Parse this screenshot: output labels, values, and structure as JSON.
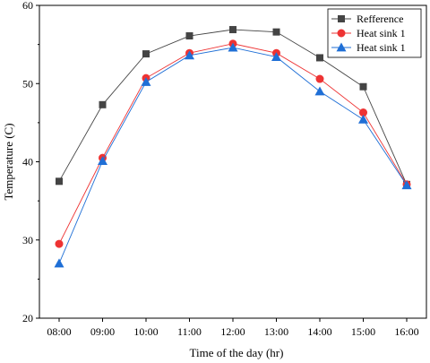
{
  "chart_data": {
    "type": "line",
    "xlabel": "Time of the day (hr)",
    "ylabel": "Temperature (C)",
    "ylim": [
      20,
      60
    ],
    "yticks": [
      "20",
      "30",
      "40",
      "50",
      "60"
    ],
    "categories": [
      "08:00",
      "09:00",
      "10:00",
      "11:00",
      "12:00",
      "13:00",
      "14:00",
      "15:00",
      "16:00"
    ],
    "grid": false,
    "legend_position": "top-right",
    "series": [
      {
        "name": "Refference",
        "color": "#444444",
        "marker": "square",
        "values": [
          37.5,
          47.3,
          53.8,
          56.1,
          56.9,
          56.6,
          53.3,
          49.6,
          37.1
        ]
      },
      {
        "name": "Heat sink 1",
        "color": "#ee3333",
        "marker": "circle",
        "values": [
          29.5,
          40.5,
          50.7,
          53.9,
          55.1,
          53.9,
          50.6,
          46.3,
          37.1
        ]
      },
      {
        "name": "Heat sink 1",
        "color": "#1f6fd6",
        "marker": "triangle",
        "values": [
          27.0,
          40.1,
          50.2,
          53.6,
          54.6,
          53.4,
          49.0,
          45.4,
          37.0
        ]
      }
    ]
  }
}
